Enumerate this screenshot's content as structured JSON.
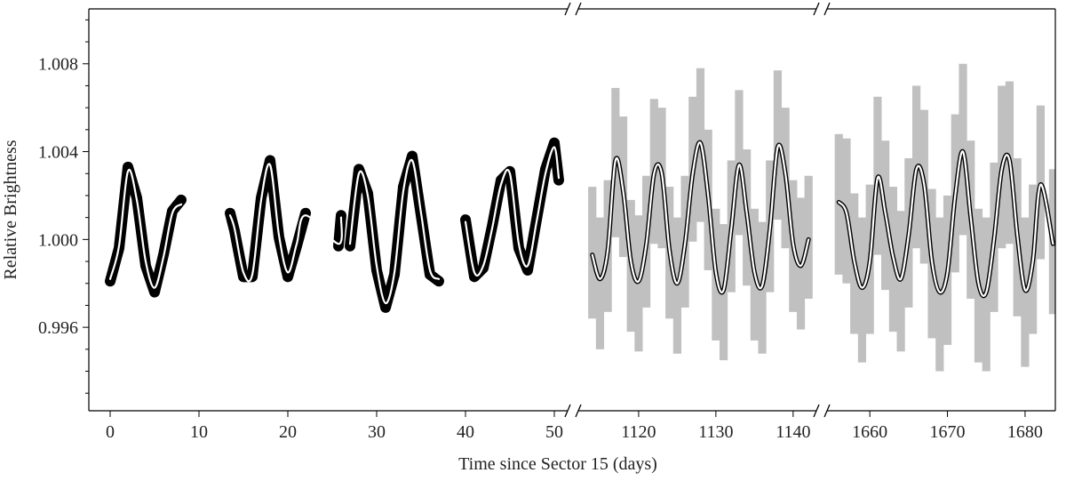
{
  "chart_data": {
    "type": "line",
    "xlabel": "Time since Sector 15 (days)",
    "ylabel": "Relative Brightness",
    "ylim": [
      0.9922,
      1.0105
    ],
    "yticks": [
      0.996,
      {
        "value": 1,
        "label": "1.000"
      },
      1.004,
      1.008
    ],
    "yticks_minor": [
      0.993,
      0.994,
      0.995,
      0.997,
      0.998,
      0.999,
      1.001,
      1.002,
      1.003,
      1.005,
      1.006,
      1.007,
      1.009,
      1.01
    ],
    "panels": [
      {
        "xlim": [
          -2.4,
          52.1
        ],
        "xticks": [
          0,
          10,
          20,
          30,
          40,
          50
        ],
        "series": [
          {
            "color": "#000000",
            "x": [
              0,
              1,
              2,
              3,
              4,
              5,
              6,
              7,
              8,
              null,
              13.5,
              14,
              15,
              16,
              17,
              18,
              19,
              20,
              21,
              22,
              null,
              25.7,
              26,
              null,
              27,
              28,
              29,
              30,
              31,
              32,
              33,
              34,
              35,
              36,
              37,
              null,
              40,
              41,
              42,
              43,
              44,
              45,
              46,
              47,
              48,
              49,
              50,
              50.5
            ],
            "values": [
              0.9981,
              0.9996,
              1.0033,
              1.0019,
              0.9988,
              0.9976,
              0.9993,
              1.0013,
              1.0018,
              null,
              1.0012,
              1.0004,
              0.9983,
              0.9983,
              1.0019,
              1.0036,
              1.0001,
              0.9983,
              0.9997,
              1.0012,
              null,
              0.9997,
              1.0011,
              null,
              0.9997,
              1.0032,
              1.0021,
              0.9986,
              0.9969,
              0.9984,
              1.0024,
              1.0038,
              1.0011,
              0.9984,
              0.9981,
              null,
              1.0009,
              0.9983,
              0.9987,
              1.0006,
              1.0027,
              1.0031,
              0.9996,
              0.9986,
              1.0009,
              1.0032,
              1.0044,
              1.0027
            ]
          },
          {
            "color": "#ffffff",
            "x": [
              0,
              1,
              2,
              3,
              4,
              5,
              6,
              7,
              8,
              null,
              13.5,
              14,
              15,
              16,
              17,
              18,
              19,
              20,
              21,
              22,
              25.7,
              26,
              null,
              27,
              28,
              29,
              30,
              31,
              32,
              33,
              34,
              35,
              36,
              37,
              null,
              40,
              41,
              42,
              43,
              44,
              45,
              46,
              47,
              48,
              49,
              50,
              50.5
            ],
            "values": [
              0.9982,
              0.9997,
              1.0031,
              1.0018,
              0.999,
              0.9978,
              0.9992,
              1.0012,
              1.0016,
              null,
              1.0011,
              1.0005,
              0.9985,
              0.9984,
              1.0018,
              1.0034,
              1.0002,
              0.9985,
              0.9998,
              1.0011,
              0.9998,
              1.001,
              null,
              0.9998,
              1.003,
              1.002,
              0.9988,
              0.9971,
              0.9985,
              1.0022,
              1.0036,
              1.0012,
              0.9986,
              0.9982,
              null,
              1.0008,
              0.9985,
              0.9988,
              1.0005,
              1.0025,
              1.003,
              0.9998,
              0.9988,
              1.0008,
              1.003,
              1.0042,
              1.0028
            ]
          }
        ]
      },
      {
        "xlim": [
          1111.5,
          1143.7
        ],
        "xticks": [
          1120,
          1130,
          1140
        ],
        "series": [
          {
            "color": "#c0c0c0",
            "x": [
              1114,
              1115,
              1116,
              1117,
              1118,
              1119,
              1120,
              1121,
              1122,
              1123,
              1124,
              1125,
              1126,
              1127,
              1128,
              1129,
              1130,
              1131,
              1132,
              1133,
              1134,
              1135,
              1136,
              1137,
              1138,
              1139,
              1140,
              1141,
              1142
            ],
            "values": [
              0.9994,
              0.998,
              0.9997,
              1.0035,
              1.0024,
              0.9988,
              0.998,
              0.9999,
              1.0031,
              1.0028,
              0.9994,
              0.9979,
              0.9999,
              1.0032,
              1.0043,
              1.0018,
              0.9984,
              0.9976,
              1.0006,
              1.0035,
              1.001,
              0.9984,
              0.9978,
              1.0006,
              1.0043,
              1.0028,
              0.9997,
              0.9989,
              1.0001
            ],
            "errors": [
              0.003,
              0.003,
              0.003,
              0.0034,
              0.0032,
              0.003,
              0.0031,
              0.003,
              0.0033,
              0.0032,
              0.003,
              0.0031,
              0.003,
              0.0033,
              0.0035,
              0.0032,
              0.003,
              0.0031,
              0.003,
              0.0033,
              0.0031,
              0.003,
              0.003,
              0.003,
              0.0034,
              0.0032,
              0.003,
              0.003,
              0.0028
            ]
          },
          {
            "color": "#ffffff",
            "edgecolor": "#000000",
            "x": [
              1114,
              1115,
              1116,
              1117,
              1118,
              1119,
              1120,
              1121,
              1122,
              1123,
              1124,
              1125,
              1126,
              1127,
              1128,
              1129,
              1130,
              1131,
              1132,
              1133,
              1134,
              1135,
              1136,
              1137,
              1138,
              1139,
              1140,
              1141,
              1142
            ],
            "values": [
              0.9993,
              0.9982,
              0.9995,
              1.0036,
              1.0022,
              0.999,
              0.9981,
              0.9998,
              1.003,
              1.003,
              0.9995,
              0.998,
              0.9998,
              1.003,
              1.0044,
              1.002,
              0.9985,
              0.9977,
              1.0005,
              1.0034,
              1.0012,
              0.9985,
              0.9979,
              1.0005,
              1.0042,
              1.003,
              0.9998,
              0.9988,
              1.0
            ]
          }
        ]
      },
      {
        "xlim": [
          1653.8,
          1683.9
        ],
        "xticks": [
          1660,
          1670,
          1680
        ],
        "series": [
          {
            "color": "#c0c0c0",
            "x": [
              1656,
              1657,
              1658,
              1659,
              1660,
              1661,
              1662,
              1663,
              1664,
              1665,
              1666,
              1667,
              1668,
              1669,
              1670,
              1671,
              1672,
              1673,
              1674,
              1675,
              1676,
              1677,
              1678,
              1679,
              1680,
              1681,
              1682,
              1683.6
            ],
            "values": [
              1.0016,
              1.0013,
              0.9989,
              0.9977,
              0.9991,
              1.0029,
              1.0011,
              0.9991,
              0.9981,
              1.0003,
              1.0033,
              1.0024,
              0.9989,
              0.9975,
              0.9986,
              1.0021,
              1.0041,
              1.0009,
              0.9979,
              0.9975,
              1.0001,
              1.0033,
              1.0035,
              1.0001,
              0.9976,
              0.9991,
              1.0026,
              0.9999
            ],
            "errors": [
              0.0032,
              0.0033,
              0.0032,
              0.0033,
              0.0034,
              0.0036,
              0.0034,
              0.0033,
              0.0032,
              0.0034,
              0.0037,
              0.0035,
              0.0034,
              0.0035,
              0.0034,
              0.0036,
              0.0039,
              0.0036,
              0.0035,
              0.0035,
              0.0034,
              0.0037,
              0.0037,
              0.0036,
              0.0034,
              0.0034,
              0.0035,
              0.0033
            ]
          },
          {
            "color": "#ffffff",
            "edgecolor": "#000000",
            "x": [
              1656,
              1657,
              1658,
              1659,
              1660,
              1661,
              1662,
              1663,
              1664,
              1665,
              1666,
              1667,
              1668,
              1669,
              1670,
              1671,
              1672,
              1673,
              1674,
              1675,
              1676,
              1677,
              1678,
              1679,
              1680,
              1681,
              1682,
              1683.6
            ],
            "values": [
              1.0017,
              1.0012,
              0.999,
              0.9978,
              0.999,
              1.0028,
              1.0012,
              0.9992,
              0.9982,
              1.0002,
              1.0032,
              1.0025,
              0.999,
              0.9976,
              0.9985,
              1.002,
              1.004,
              1.001,
              0.998,
              0.9976,
              1.0,
              1.0032,
              1.0036,
              1.0002,
              0.9977,
              0.999,
              1.0025,
              0.9998
            ]
          }
        ]
      }
    ]
  }
}
